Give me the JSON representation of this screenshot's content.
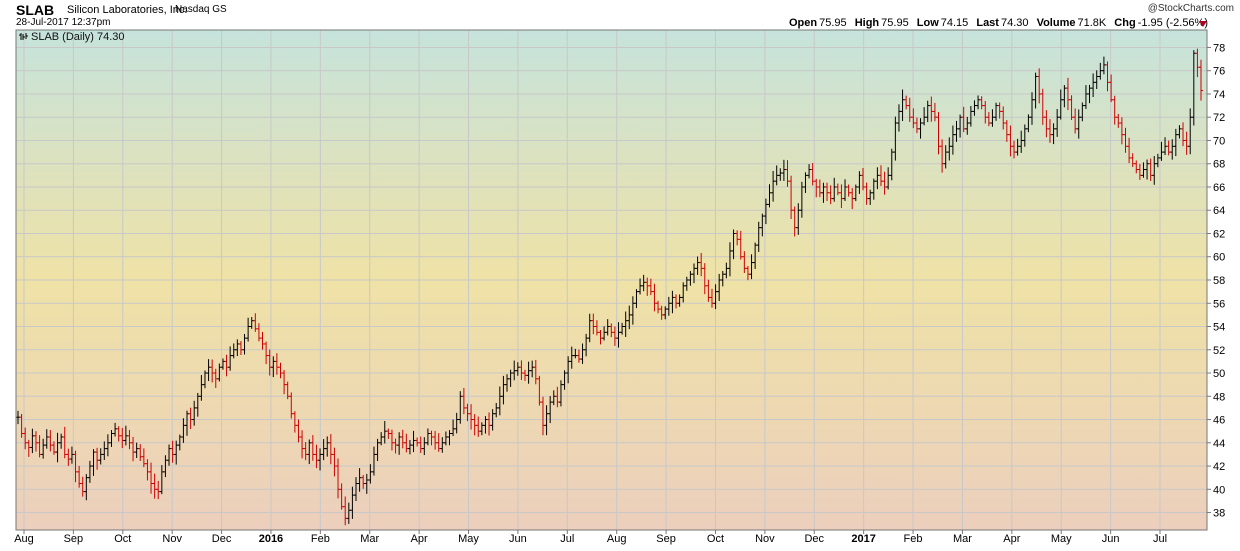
{
  "header": {
    "ticker": "SLAB",
    "company": "Silicon Laboratories, Inc.",
    "exchange": "Nasdaq GS",
    "datetime": "28-Jul-2017 12:37pm",
    "credit": "@StockCharts.com",
    "quote": {
      "open_label": "Open",
      "open": "75.95",
      "high_label": "High",
      "high": "75.95",
      "low_label": "Low",
      "low": "74.15",
      "last_label": "Last",
      "last": "74.30",
      "volume_label": "Volume",
      "volume": "71.8K",
      "chg_label": "Chg",
      "chg": "-1.95 (-2.56%)"
    }
  },
  "legend": {
    "label": "SLAB (Daily) 74.30"
  },
  "colors": {
    "up": "#000000",
    "down": "#cc0000",
    "grid": "#c8c8c8",
    "bg_top": "#c6e3dc",
    "bg_mid": "#efe2a6",
    "bg_bottom": "#eccfbd"
  },
  "chart_data": {
    "type": "ohlc-bar",
    "ylim": [
      36.5,
      79.5
    ],
    "y_ticks": [
      38,
      40,
      42,
      44,
      46,
      48,
      50,
      52,
      54,
      56,
      58,
      60,
      62,
      64,
      66,
      68,
      70,
      72,
      74,
      76,
      78
    ],
    "x_ticks": [
      {
        "label": "Aug",
        "bold": false
      },
      {
        "label": "Sep",
        "bold": false
      },
      {
        "label": "Oct",
        "bold": false
      },
      {
        "label": "Nov",
        "bold": false
      },
      {
        "label": "Dec",
        "bold": false
      },
      {
        "label": "2016",
        "bold": true
      },
      {
        "label": "Feb",
        "bold": false
      },
      {
        "label": "Mar",
        "bold": false
      },
      {
        "label": "Apr",
        "bold": false
      },
      {
        "label": "May",
        "bold": false
      },
      {
        "label": "Jun",
        "bold": false
      },
      {
        "label": "Jul",
        "bold": false
      },
      {
        "label": "Aug",
        "bold": false
      },
      {
        "label": "Sep",
        "bold": false
      },
      {
        "label": "Oct",
        "bold": false
      },
      {
        "label": "Nov",
        "bold": false
      },
      {
        "label": "Dec",
        "bold": false
      },
      {
        "label": "2017",
        "bold": true
      },
      {
        "label": "Feb",
        "bold": false
      },
      {
        "label": "Mar",
        "bold": false
      },
      {
        "label": "Apr",
        "bold": false
      },
      {
        "label": "May",
        "bold": false
      },
      {
        "label": "Jun",
        "bold": false
      },
      {
        "label": "Jul",
        "bold": false
      }
    ],
    "series": [
      {
        "closes": [
          46.2,
          44.8,
          44.0,
          43.6,
          44.6,
          44.0,
          43.0,
          43.8,
          44.5,
          43.8,
          43.2,
          44.0,
          44.5,
          43.0,
          42.6,
          43.0,
          41.5,
          40.5,
          39.8,
          41.0,
          42.0,
          43.2,
          42.5,
          43.0,
          43.5,
          44.0,
          44.8,
          45.2,
          44.6,
          44.2,
          44.6,
          44.0,
          43.2,
          43.5,
          42.8,
          42.2,
          41.5,
          40.5,
          40.0,
          39.8,
          41.5,
          42.5,
          43.5,
          43.0,
          43.8,
          44.5,
          45.5,
          46.5,
          46.0,
          47.0,
          48.0,
          49.0,
          50.0,
          50.5,
          50.0,
          49.5,
          50.5,
          51.0,
          50.5,
          51.5,
          52.0,
          52.5,
          52.0,
          53.0,
          54.0,
          54.5,
          53.8,
          53.0,
          52.5,
          51.5,
          50.5,
          51.0,
          50.5,
          50.0,
          49.0,
          48.0,
          46.5,
          45.5,
          44.5,
          43.5,
          43.0,
          44.0,
          43.0,
          42.5,
          43.0,
          43.5,
          44.0,
          43.0,
          42.0,
          40.0,
          38.5,
          37.5,
          38.2,
          39.5,
          40.5,
          41.0,
          40.5,
          40.8,
          41.5,
          43.0,
          44.0,
          44.5,
          45.0,
          44.8,
          44.0,
          43.8,
          44.5,
          44.0,
          43.5,
          43.8,
          44.2,
          44.0,
          43.5,
          44.0,
          44.8,
          44.5,
          44.0,
          43.5,
          44.0,
          44.5,
          44.8,
          45.2,
          46.0,
          48.0,
          47.0,
          46.5,
          46.0,
          45.5,
          45.0,
          45.5,
          46.0,
          45.5,
          46.5,
          47.0,
          48.0,
          49.0,
          49.5,
          50.0,
          50.2,
          50.5,
          50.0,
          49.8,
          50.2,
          50.5,
          49.5,
          47.5,
          45.5,
          46.5,
          47.5,
          48.0,
          47.5,
          49.0,
          50.0,
          51.0,
          51.5,
          51.5,
          51.2,
          52.0,
          53.0,
          54.5,
          54.0,
          53.5,
          53.0,
          53.5,
          54.0,
          53.5,
          53.0,
          53.5,
          54.0,
          54.5,
          55.0,
          56.0,
          57.0,
          57.5,
          57.8,
          57.5,
          57.0,
          56.0,
          55.5,
          55.0,
          55.5,
          56.0,
          56.5,
          56.0,
          56.5,
          57.5,
          58.0,
          58.5,
          59.0,
          59.5,
          59.0,
          57.5,
          56.5,
          56.0,
          57.0,
          58.0,
          58.5,
          59.0,
          60.5,
          62.0,
          61.5,
          60.0,
          59.0,
          58.5,
          59.5,
          61.0,
          62.5,
          63.5,
          64.5,
          65.5,
          66.5,
          67.0,
          67.2,
          67.5,
          66.5,
          64.0,
          62.5,
          64.0,
          66.0,
          67.0,
          67.5,
          66.5,
          66.0,
          65.5,
          66.0,
          65.5,
          65.0,
          66.0,
          65.5,
          65.0,
          66.0,
          65.5,
          65.0,
          66.0,
          67.0,
          66.0,
          65.0,
          65.5,
          66.5,
          67.0,
          66.5,
          66.0,
          67.0,
          69.0,
          71.5,
          72.5,
          73.5,
          73.0,
          72.0,
          71.5,
          71.0,
          71.5,
          72.0,
          73.0,
          72.5,
          72.0,
          69.5,
          68.0,
          69.0,
          69.5,
          70.5,
          71.0,
          72.0,
          71.0,
          71.5,
          72.5,
          73.0,
          73.5,
          73.0,
          72.0,
          71.5,
          72.0,
          73.0,
          72.5,
          71.5,
          70.5,
          69.5,
          69.0,
          69.5,
          70.0,
          71.0,
          72.0,
          73.5,
          75.5,
          74.0,
          72.0,
          71.0,
          70.5,
          71.0,
          72.0,
          73.5,
          74.5,
          73.5,
          72.0,
          71.0,
          72.0,
          73.0,
          74.0,
          74.5,
          75.0,
          75.5,
          76.0,
          76.5,
          75.0,
          73.5,
          72.0,
          71.5,
          70.5,
          69.5,
          68.5,
          68.0,
          67.5,
          67.0,
          67.5,
          68.0,
          67.0,
          68.0,
          68.5,
          69.0,
          69.5,
          69.0,
          69.5,
          70.5,
          71.0,
          70.0,
          69.5,
          72.0,
          77.5,
          76.3,
          74.3
        ]
      }
    ]
  }
}
